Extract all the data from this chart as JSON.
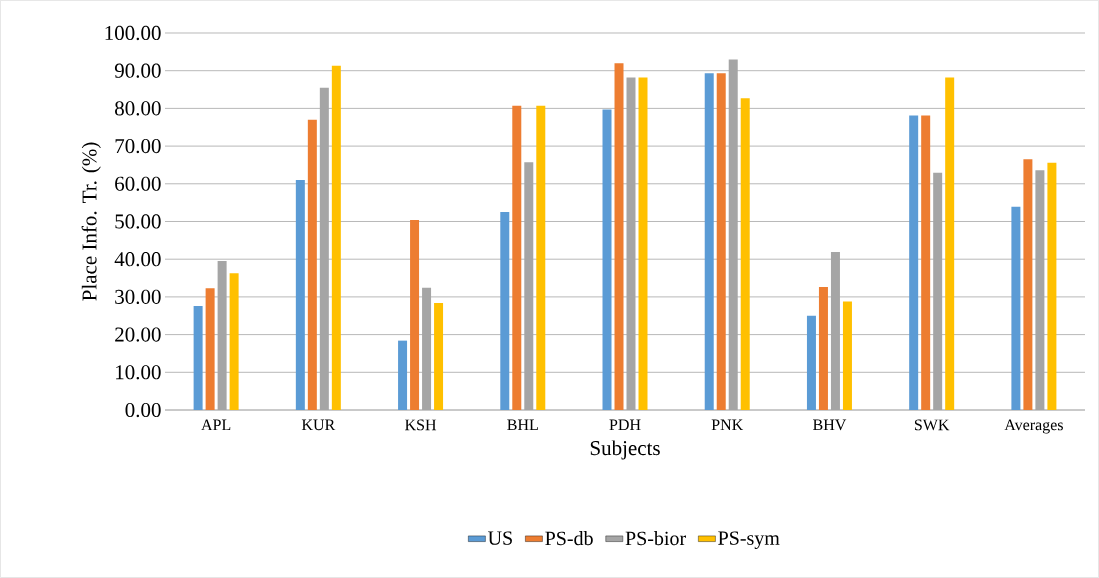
{
  "chart_data": {
    "type": "bar",
    "xlabel": "Subjects",
    "ylabel": "Place Info. Tr. (%)",
    "categories": [
      "APL",
      "KUR",
      "KSH",
      "BHL",
      "PDH",
      "PNK",
      "BHV",
      "SWK",
      "Averages"
    ],
    "series": [
      {
        "name": "US",
        "color": "#5b9bd5",
        "values": [
          27.6,
          61.0,
          18.4,
          52.5,
          79.7,
          89.3,
          25.0,
          78.1,
          53.9
        ]
      },
      {
        "name": "PS-db",
        "color": "#ed7d31",
        "values": [
          32.3,
          77.0,
          50.4,
          80.7,
          92.0,
          89.3,
          32.6,
          78.1,
          66.5
        ]
      },
      {
        "name": "PS-bior",
        "color": "#a5a5a5",
        "values": [
          39.5,
          85.5,
          32.4,
          65.7,
          88.2,
          93.0,
          41.9,
          62.9,
          63.6
        ]
      },
      {
        "name": "PS-sym",
        "color": "#ffc000",
        "values": [
          36.3,
          91.3,
          28.4,
          80.7,
          88.2,
          82.7,
          28.8,
          88.2,
          65.6
        ]
      }
    ],
    "ylim": [
      0,
      100
    ],
    "yticks": [
      {
        "value": 0,
        "label": "0.00"
      },
      {
        "value": 10,
        "label": "10.00"
      },
      {
        "value": 20,
        "label": "20.00"
      },
      {
        "value": 30,
        "label": "30.00"
      },
      {
        "value": 40,
        "label": "40.00"
      },
      {
        "value": 50,
        "label": "50.00"
      },
      {
        "value": 60,
        "label": "60.00"
      },
      {
        "value": 70,
        "label": "70.00"
      },
      {
        "value": 80,
        "label": "80.00"
      },
      {
        "value": 90,
        "label": "90.00"
      },
      {
        "value": 100,
        "label": "100.00"
      }
    ],
    "grid": "y",
    "legend": "bottom"
  }
}
